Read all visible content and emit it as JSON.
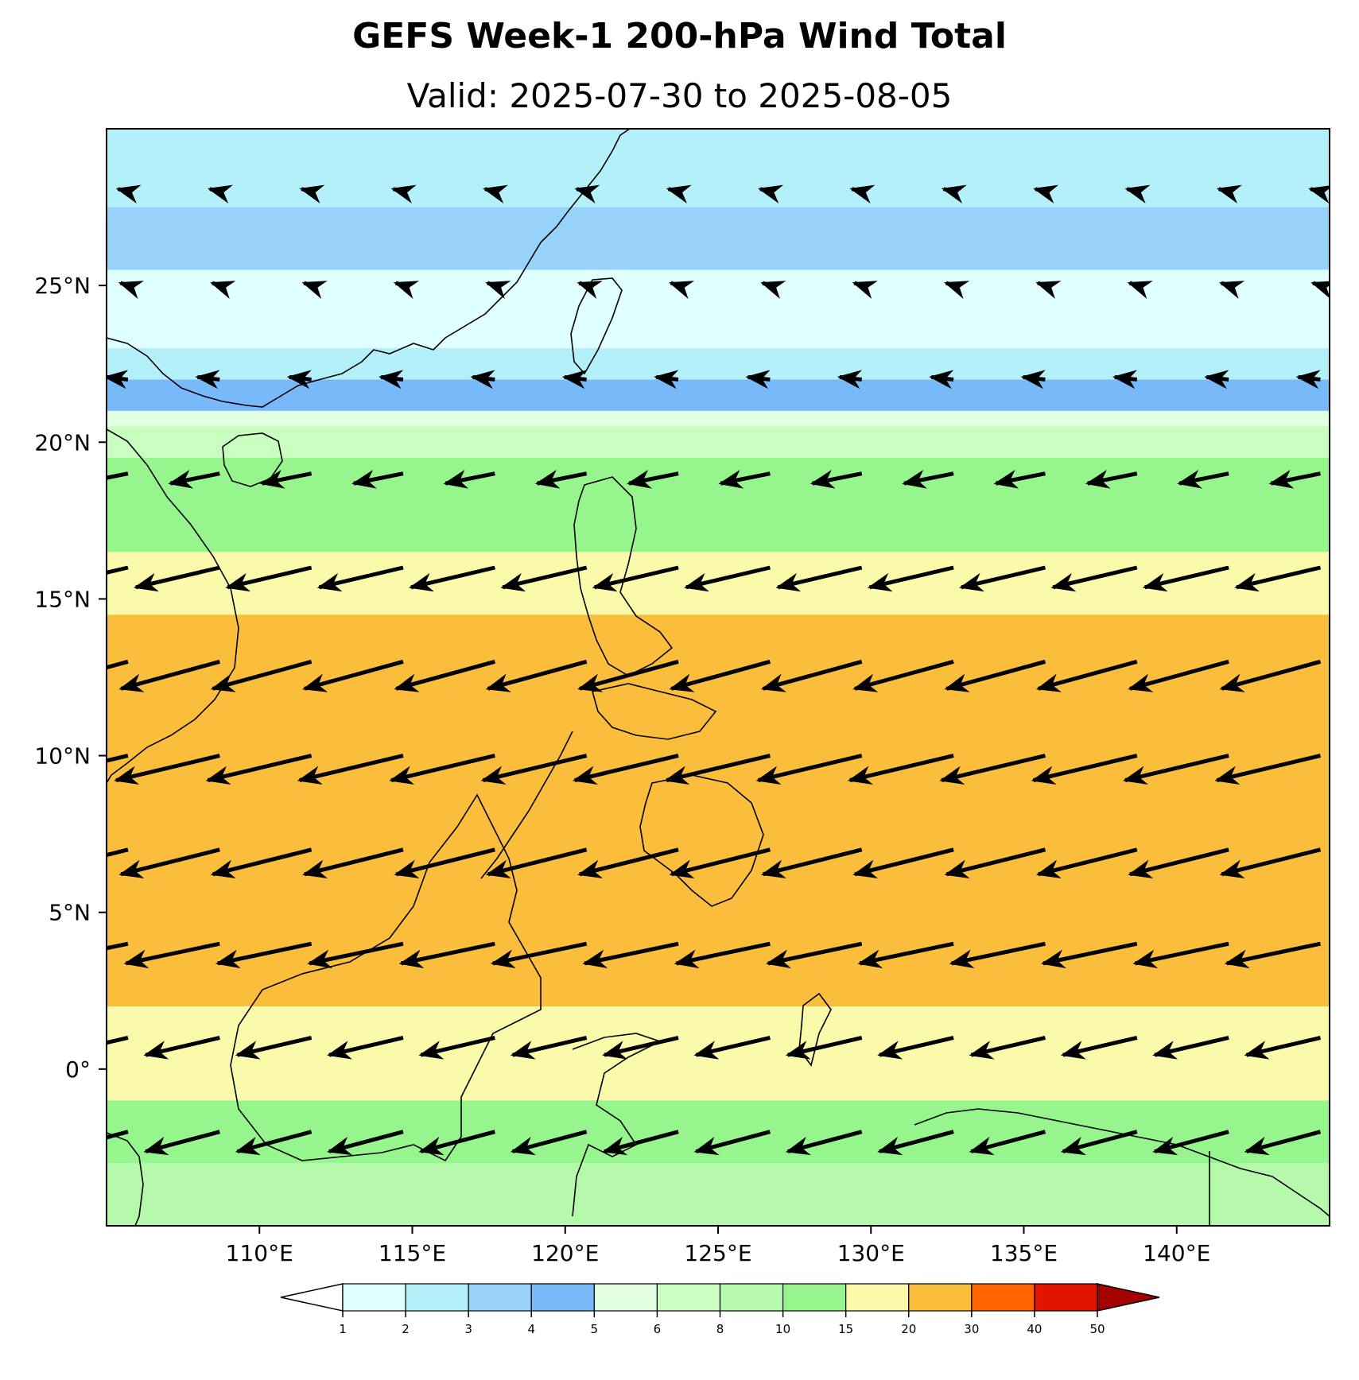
{
  "title": "GEFS Week-1 200-hPa Wind Total",
  "subtitle": "Valid: 2025-07-30 to 2025-08-05",
  "lon_ticks": [
    {
      "value": 110,
      "label": "110°E"
    },
    {
      "value": 115,
      "label": "115°E"
    },
    {
      "value": 120,
      "label": "120°E"
    },
    {
      "value": 125,
      "label": "125°E"
    },
    {
      "value": 130,
      "label": "130°E"
    },
    {
      "value": 135,
      "label": "135°E"
    },
    {
      "value": 140,
      "label": "140°E"
    }
  ],
  "lat_ticks": [
    {
      "value": 25,
      "label": "25°N"
    },
    {
      "value": 20,
      "label": "20°N"
    },
    {
      "value": 15,
      "label": "15°N"
    },
    {
      "value": 10,
      "label": "10°N"
    },
    {
      "value": 5,
      "label": "5°N"
    },
    {
      "value": 0,
      "label": "0°"
    }
  ],
  "colorbar": {
    "levels": [
      "1",
      "2",
      "3",
      "4",
      "5",
      "6",
      "8",
      "10",
      "15",
      "20",
      "30",
      "40",
      "50"
    ],
    "colors": [
      "#e0ffff",
      "#b4f0fa",
      "#96d2fa",
      "#78b9fa",
      "#e1ffe1",
      "#c8ffbe",
      "#b4faaa",
      "#96f58c",
      "#fafaaa",
      "#fabe3c",
      "#ff6400",
      "#e11400",
      "#a50000"
    ],
    "under_color": "#ffffff",
    "over_color": "#a50000"
  },
  "chart_data": {
    "type": "map",
    "title": "GEFS Week-1 200-hPa Wind Total",
    "subtitle": "Valid: 2025-07-30 to 2025-08-05",
    "lon_range": [
      105,
      145
    ],
    "lat_range": [
      -5,
      30
    ],
    "field_bands": [
      {
        "from_lat": -5.0,
        "to_lat": -3.0,
        "color": "#b4faaa"
      },
      {
        "from_lat": -3.0,
        "to_lat": -1.0,
        "color": "#96f58c"
      },
      {
        "from_lat": -1.0,
        "to_lat": 2.0,
        "color": "#fafaaa"
      },
      {
        "from_lat": 2.0,
        "to_lat": 14.5,
        "color": "#fabe3c"
      },
      {
        "from_lat": 14.5,
        "to_lat": 16.5,
        "color": "#fafaaa"
      },
      {
        "from_lat": 16.5,
        "to_lat": 19.5,
        "color": "#96f58c"
      },
      {
        "from_lat": 19.5,
        "to_lat": 20.5,
        "color": "#c8ffbe"
      },
      {
        "from_lat": 20.5,
        "to_lat": 21.0,
        "color": "#e1ffe1"
      },
      {
        "from_lat": 21.0,
        "to_lat": 22.0,
        "color": "#78b9fa"
      },
      {
        "from_lat": 22.0,
        "to_lat": 23.0,
        "color": "#b4f0fa"
      },
      {
        "from_lat": 23.0,
        "to_lat": 25.5,
        "color": "#e0ffff"
      },
      {
        "from_lat": 25.5,
        "to_lat": 27.5,
        "color": "#96d2fa"
      },
      {
        "from_lat": 27.5,
        "to_lat": 30.0,
        "color": "#b4f0fa"
      }
    ],
    "wind_rows": [
      {
        "lat": 28,
        "u": -2.0,
        "v": 0.5
      },
      {
        "lat": 25,
        "u": -1.5,
        "v": 0.5
      },
      {
        "lat": 22,
        "u": -4.5,
        "v": 0.5
      },
      {
        "lat": 19,
        "u": -10.0,
        "v": -2.0
      },
      {
        "lat": 16,
        "u": -17.0,
        "v": -4.0
      },
      {
        "lat": 13,
        "u": -20.0,
        "v": -5.5
      },
      {
        "lat": 10,
        "u": -21.0,
        "v": -5.0
      },
      {
        "lat": 7,
        "u": -20.0,
        "v": -5.0
      },
      {
        "lat": 4,
        "u": -19.0,
        "v": -4.0
      },
      {
        "lat": 1,
        "u": -15.0,
        "v": -3.5
      },
      {
        "lat": -2,
        "u": -15.0,
        "v": -4.0
      }
    ]
  }
}
